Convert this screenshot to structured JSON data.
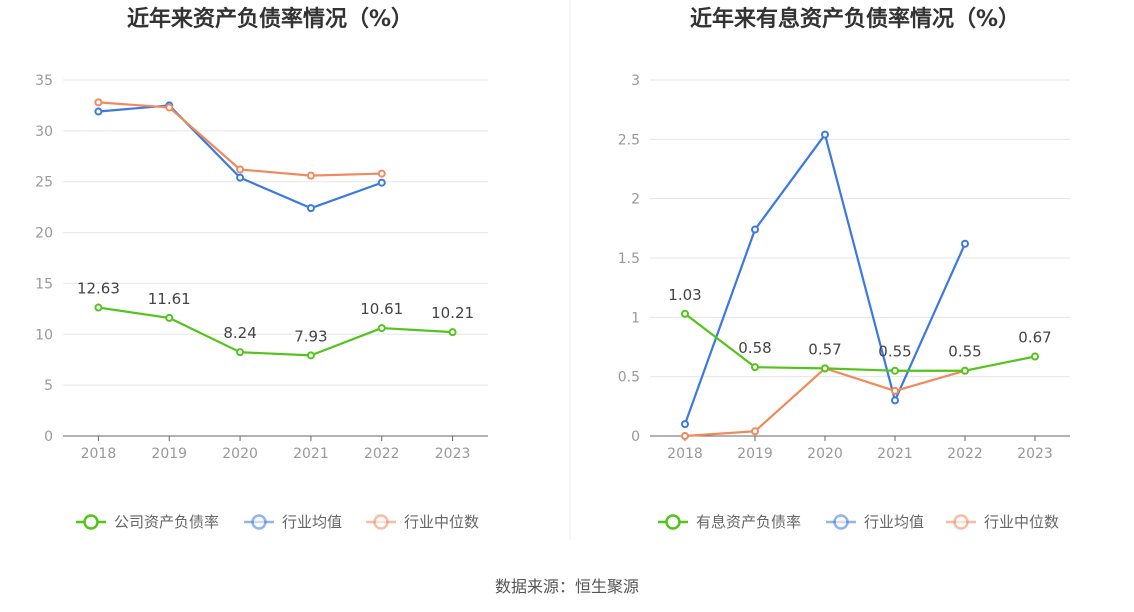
{
  "source": "数据来源：恒生聚源",
  "colors": {
    "company": "#52c41a",
    "average": "#3b78e0",
    "median": "#f08a5d"
  },
  "chart_data": [
    {
      "type": "line",
      "title": "近年来资产负债率情况（%）",
      "categories": [
        "2018",
        "2019",
        "2020",
        "2021",
        "2022",
        "2023"
      ],
      "ylim": [
        0,
        35
      ],
      "yticks": [
        "0",
        "5",
        "10",
        "15",
        "20",
        "25",
        "30",
        "35"
      ],
      "grid": true,
      "legend_position": "bottom",
      "series": [
        {
          "name": "公司资产负债率",
          "role": "company",
          "values": [
            12.63,
            11.61,
            8.24,
            7.93,
            10.61,
            10.21
          ],
          "labels": [
            "12.63",
            "11.61",
            "8.24",
            "7.93",
            "10.61",
            "10.21"
          ]
        },
        {
          "name": "行业均值",
          "role": "average",
          "values": [
            31.9,
            32.5,
            25.4,
            22.4,
            24.9,
            null
          ],
          "labels": []
        },
        {
          "name": "行业中位数",
          "role": "median",
          "values": [
            32.8,
            32.3,
            26.2,
            25.6,
            25.8,
            null
          ],
          "labels": []
        }
      ]
    },
    {
      "type": "line",
      "title": "近年来有息资产负债率情况（%）",
      "categories": [
        "2018",
        "2019",
        "2020",
        "2021",
        "2022",
        "2023"
      ],
      "ylim": [
        0,
        3
      ],
      "yticks": [
        "0",
        "0.5",
        "1",
        "1.5",
        "2",
        "2.5",
        "3"
      ],
      "grid": true,
      "legend_position": "bottom",
      "series": [
        {
          "name": "有息资产负债率",
          "role": "company",
          "values": [
            1.03,
            0.58,
            0.57,
            0.55,
            0.55,
            0.67
          ],
          "labels": [
            "1.03",
            "0.58",
            "0.57",
            "0.55",
            "0.55",
            "0.67"
          ]
        },
        {
          "name": "行业均值",
          "role": "average",
          "values": [
            0.1,
            1.74,
            2.54,
            0.3,
            1.62,
            null
          ],
          "labels": []
        },
        {
          "name": "行业中位数",
          "role": "median",
          "values": [
            0.0,
            0.04,
            0.57,
            0.38,
            0.55,
            null
          ],
          "labels": []
        }
      ]
    }
  ]
}
